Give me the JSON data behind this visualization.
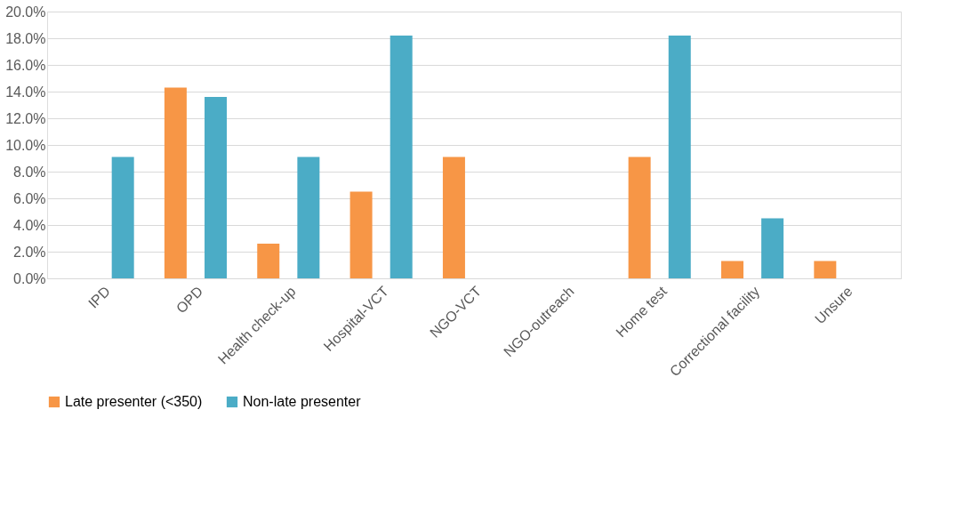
{
  "chart_data": {
    "type": "bar",
    "categories": [
      "IPD",
      "OPD",
      "Health check-up",
      "Hospital-VCT",
      "NGO-VCT",
      "NGO-outreach",
      "Home test",
      "Correctional facility",
      "Unsure"
    ],
    "series": [
      {
        "name": "Late presenter (<350)",
        "color": "#f79646",
        "values": [
          0,
          14.3,
          2.6,
          6.5,
          9.1,
          0,
          9.1,
          1.3,
          1.3
        ]
      },
      {
        "name": "Non-late presenter",
        "color": "#4bacc6",
        "values": [
          9.1,
          13.6,
          9.1,
          18.2,
          0,
          0,
          18.2,
          4.5,
          0
        ]
      }
    ],
    "ylim": [
      0,
      20
    ],
    "yticks": [
      {
        "value": 0,
        "label": "0.0%"
      },
      {
        "value": 2,
        "label": "2.0%"
      },
      {
        "value": 4,
        "label": "4.0%"
      },
      {
        "value": 6,
        "label": "6.0%"
      },
      {
        "value": 8,
        "label": "8.0%"
      },
      {
        "value": 10,
        "label": "10.0%"
      },
      {
        "value": 12,
        "label": "12.0%"
      },
      {
        "value": 14,
        "label": "14.0%"
      },
      {
        "value": 16,
        "label": "16.0%"
      },
      {
        "value": 18,
        "label": "18.0%"
      },
      {
        "value": 20,
        "label": "20.0%"
      }
    ],
    "grid": "y",
    "legend": "bottom"
  }
}
